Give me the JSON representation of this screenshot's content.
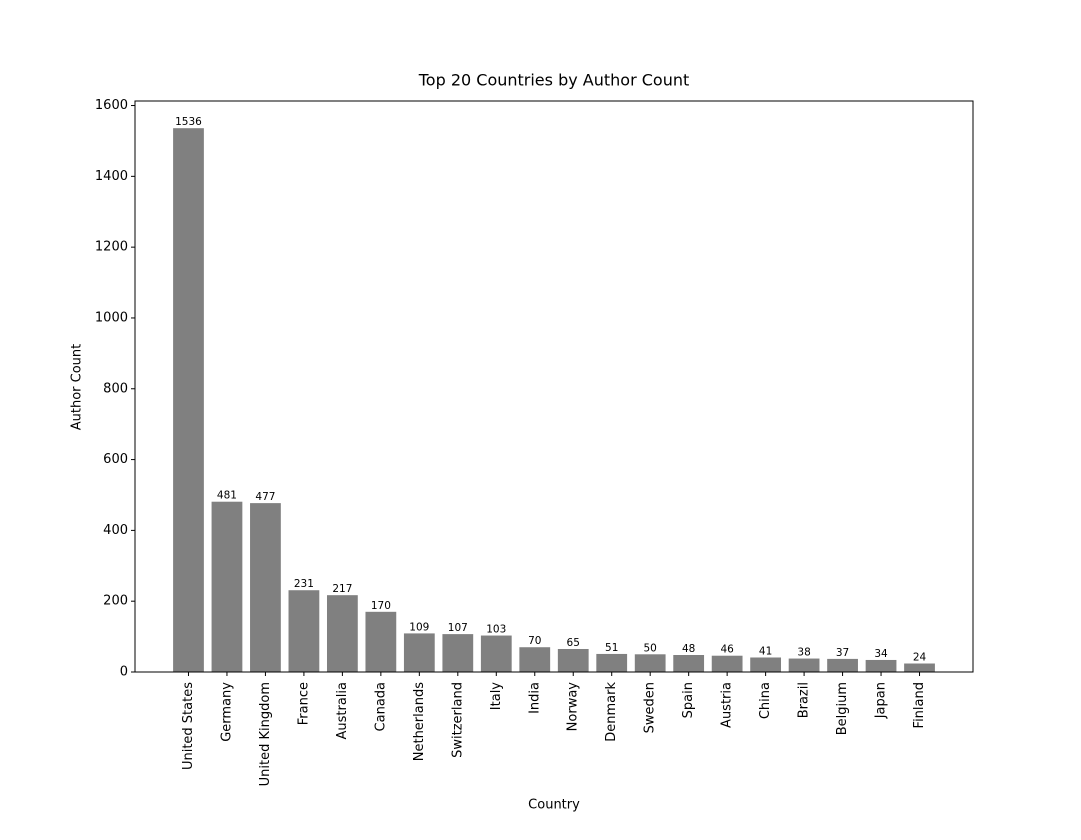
{
  "chart_data": {
    "type": "bar",
    "title": "Top 20 Countries by Author Count",
    "x_label": "Country",
    "y_label": "Author Count",
    "categories": [
      "United States",
      "Germany",
      "United Kingdom",
      "France",
      "Australia",
      "Canada",
      "Netherlands",
      "Switzerland",
      "Italy",
      "India",
      "Norway",
      "Denmark",
      "Sweden",
      "Spain",
      "Austria",
      "China",
      "Brazil",
      "Belgium",
      "Japan",
      "Finland"
    ],
    "values": [
      1536,
      481,
      477,
      231,
      217,
      170,
      109,
      107,
      103,
      70,
      65,
      51,
      50,
      48,
      46,
      41,
      38,
      37,
      34,
      24
    ],
    "color": "#808080",
    "ylim": [
      0,
      1612.8
    ],
    "yticks": [
      0,
      200,
      400,
      600,
      800,
      1000,
      1200,
      1400,
      1600
    ],
    "grid": false
  }
}
